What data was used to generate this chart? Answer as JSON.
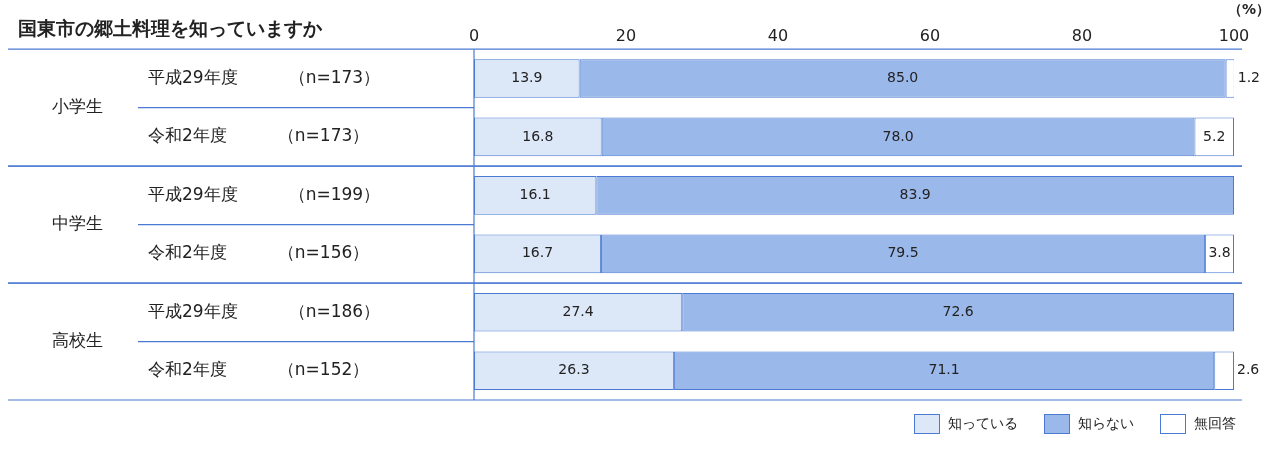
{
  "chart_data": {
    "type": "bar",
    "orientation": "horizontal",
    "stacked": true,
    "title": "国東市の郷土料理を知っていますか",
    "xlabel": "（%）",
    "categories": [
      "平成29年度　　　（n=173）",
      "令和2年度　　　（n=173）",
      "平成29年度　　　（n=199）",
      "令和2年度　　　（n=156）",
      "平成29年度　　　（n=186）",
      "令和2年度　　　（n=152）"
    ],
    "annotations": [
      "小学生",
      "中学生",
      "高校生"
    ],
    "series": [
      {
        "name": "知っている",
        "color": "#dce7f8",
        "values": [
          13.9,
          16.8,
          16.1,
          16.7,
          27.4,
          26.3
        ],
        "value_labels": [
          "13.9",
          "16.8",
          "16.1",
          "16.7",
          "27.4",
          "26.3"
        ]
      },
      {
        "name": "知らない",
        "color": "#9bb8ea",
        "values": [
          85.0,
          78.0,
          83.9,
          79.5,
          72.6,
          71.1
        ],
        "value_labels": [
          "85.0",
          "78.0",
          "83.9",
          "79.5",
          "72.6",
          "71.1"
        ]
      },
      {
        "name": "無回答",
        "color": "#ffffff",
        "values": [
          1.2,
          5.2,
          null,
          3.8,
          null,
          2.6
        ],
        "value_labels": [
          "1.2",
          "5.2",
          null,
          "3.8",
          null,
          "2.6"
        ]
      }
    ],
    "xlim": [
      0,
      100
    ],
    "xticks": [
      0,
      20,
      40,
      60,
      80,
      100
    ],
    "grid": false,
    "legend": "bottom right"
  }
}
